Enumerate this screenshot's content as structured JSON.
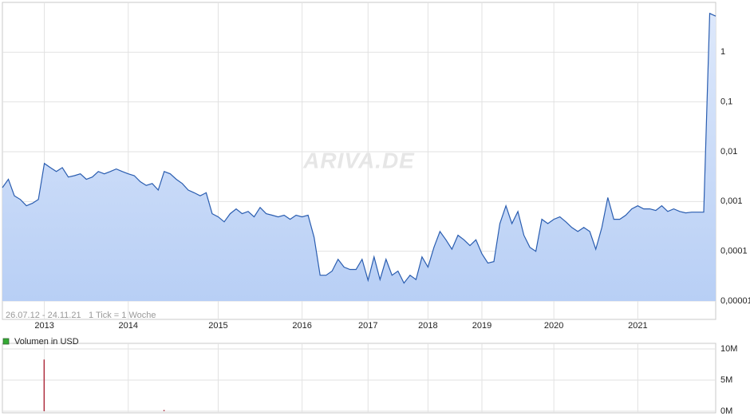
{
  "chart_data": [
    {
      "type": "line",
      "date_range": "26.07.12 - 24.11.21",
      "tick_note": "1 Tick = 1 Woche",
      "watermark": "ARIVA.DE",
      "log_scale": true,
      "grid": true,
      "color": "#2a5db0",
      "categories": [
        null,
        null,
        null,
        null,
        null,
        null,
        null,
        "2013",
        null,
        null,
        null,
        null,
        null,
        null,
        null,
        null,
        null,
        null,
        null,
        null,
        null,
        "2014",
        null,
        null,
        null,
        null,
        null,
        null,
        null,
        null,
        null,
        null,
        null,
        null,
        null,
        null,
        "2015",
        null,
        null,
        null,
        null,
        null,
        null,
        null,
        null,
        null,
        null,
        null,
        null,
        null,
        "2016",
        null,
        null,
        null,
        null,
        null,
        null,
        null,
        null,
        null,
        null,
        "2017",
        null,
        null,
        null,
        null,
        null,
        null,
        null,
        null,
        null,
        "2018",
        null,
        null,
        null,
        null,
        null,
        null,
        null,
        null,
        "2019",
        null,
        null,
        null,
        null,
        null,
        null,
        null,
        null,
        null,
        null,
        null,
        "2020",
        null,
        null,
        null,
        null,
        null,
        null,
        null,
        null,
        null,
        null,
        null,
        null,
        null,
        "2021",
        null,
        null,
        null,
        null,
        null,
        null,
        null,
        null,
        null,
        null,
        null,
        null,
        null
      ],
      "values": [
        0.0019,
        0.0028,
        0.0013,
        0.0011,
        0.00082,
        0.00092,
        0.0011,
        0.0058,
        0.0048,
        0.004,
        0.0048,
        0.0031,
        0.0033,
        0.0036,
        0.0028,
        0.0031,
        0.004,
        0.0036,
        0.004,
        0.0045,
        0.004,
        0.0036,
        0.0033,
        0.0025,
        0.0021,
        0.0023,
        0.0017,
        0.004,
        0.0036,
        0.0028,
        0.0023,
        0.0017,
        0.0015,
        0.0013,
        0.0015,
        0.00057,
        0.00049,
        0.00039,
        0.00057,
        0.00071,
        0.00057,
        0.00063,
        0.00049,
        0.00076,
        0.00057,
        0.00053,
        0.00049,
        0.00053,
        0.00044,
        0.00053,
        0.00049,
        0.00053,
        0.00019,
        3.3e-05,
        3.3e-05,
        4e-05,
        6.9e-05,
        4.8e-05,
        4.3e-05,
        4.3e-05,
        6.9e-05,
        2.6e-05,
        7.7e-05,
        2.7e-05,
        6.9e-05,
        3.3e-05,
        4e-05,
        2.3e-05,
        3.3e-05,
        2.7e-05,
        7.7e-05,
        4.8e-05,
        0.00012,
        0.00025,
        0.00017,
        0.00011,
        0.00021,
        0.00017,
        0.00013,
        0.00017,
        8.9e-05,
        5.8e-05,
        6.2e-05,
        0.00036,
        0.00082,
        0.00036,
        0.00063,
        0.00021,
        0.00012,
        0.0001,
        0.00044,
        0.00036,
        0.00044,
        0.00049,
        0.00039,
        0.0003,
        0.00025,
        0.0003,
        0.00025,
        0.00011,
        0.0003,
        0.0012,
        0.00044,
        0.00044,
        0.00053,
        0.00071,
        0.00082,
        0.00071,
        0.00071,
        0.00066,
        0.00082,
        0.00063,
        0.00071,
        0.00063,
        0.00059,
        0.00061,
        0.00061,
        0.00061,
        6,
        5.3
      ],
      "ylim": [
        1e-05,
        10
      ],
      "yticks": [
        {
          "value": 1e-05,
          "label": "0,00001"
        },
        {
          "value": 0.0001,
          "label": "0,0001"
        },
        {
          "value": 0.001,
          "label": "0,001"
        },
        {
          "value": 0.01,
          "label": "0,01"
        },
        {
          "value": 0.1,
          "label": "0,1"
        },
        1
      ]
    },
    {
      "type": "bar",
      "grid": true,
      "series": [
        {
          "name": "Volumen in USD",
          "color": "#33aa33",
          "bar_color": "#b03040",
          "values": [
            0,
            0,
            0,
            0,
            0,
            0,
            0,
            8300000,
            0,
            0,
            0,
            0,
            0,
            0,
            0,
            0,
            0,
            0,
            0,
            0,
            0,
            0,
            0,
            0,
            0,
            0,
            0,
            200000,
            0,
            0,
            0,
            0,
            0,
            0,
            0,
            0,
            0,
            0,
            0,
            0,
            0,
            0,
            0,
            0,
            0,
            0,
            0,
            0,
            0,
            0,
            0,
            0,
            0,
            0,
            0,
            0,
            0,
            0,
            0,
            0,
            0,
            0,
            0,
            0,
            0,
            0,
            0,
            0,
            0,
            0,
            0,
            0,
            0,
            0,
            0,
            0,
            0,
            0,
            0,
            0,
            0,
            0,
            0,
            0,
            0,
            0,
            0,
            0,
            0,
            0,
            0,
            0,
            0,
            0,
            0,
            0,
            0,
            0,
            0,
            0,
            0,
            0,
            0,
            0,
            0,
            0,
            0,
            0,
            0,
            0,
            0,
            0,
            0,
            0,
            0,
            0,
            0,
            0,
            0,
            0
          ]
        }
      ],
      "ylim": [
        0,
        10000000
      ],
      "yticks": [
        {
          "value": 0,
          "label": "0M"
        },
        {
          "value": 5000000,
          "label": "5M"
        },
        {
          "value": 10000000,
          "label": "10M"
        }
      ]
    }
  ]
}
